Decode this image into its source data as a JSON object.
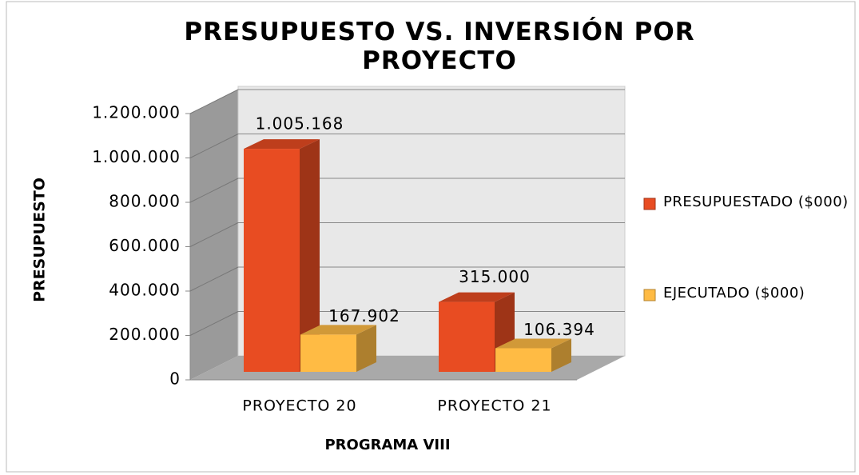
{
  "chart_data": {
    "type": "bar3d",
    "title": "PRESUPUESTO VS. INVERSIÓN POR PROYECTO",
    "x_label": "PROGRAMA VIII",
    "y_label": "PRESUPUESTO",
    "categories": [
      "PROYECTO 20",
      "PROYECTO 21"
    ],
    "series": [
      {
        "name": "PRESUPUESTADO ($000)",
        "color": "#e84c22",
        "values": [
          1005168,
          315000
        ],
        "value_labels": [
          "1.005.168",
          "315.000"
        ]
      },
      {
        "name": "EJECUTADO ($000)",
        "color": "#ffbb44",
        "values": [
          167902,
          106394
        ],
        "value_labels": [
          "167.902",
          "106.394"
        ]
      }
    ],
    "ylim": [
      0,
      1200000
    ],
    "yticks": [
      0,
      {
        "value": 200000,
        "label": "200.000"
      },
      {
        "value": 400000,
        "label": "400.000"
      },
      {
        "value": 600000,
        "label": "600.000"
      },
      {
        "value": 800000,
        "label": "800.000"
      },
      {
        "value": 1000000,
        "label": "1.000.000"
      },
      {
        "value": 1200000,
        "label": "1.200.000"
      }
    ],
    "grid": true,
    "legend": "right"
  }
}
